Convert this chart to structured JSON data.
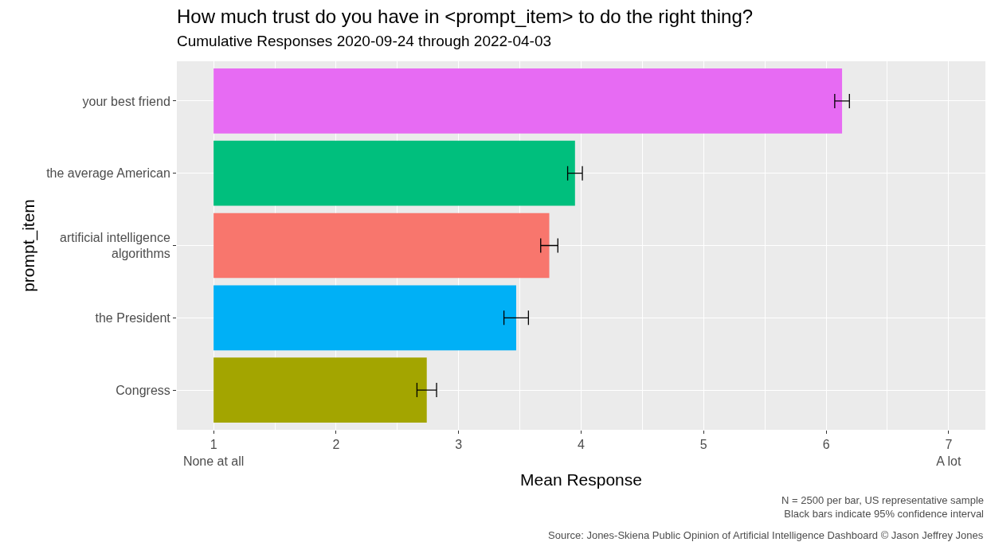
{
  "chart_data": {
    "type": "bar",
    "orientation": "horizontal",
    "title": "How much trust do you have in <prompt_item> to do the right thing?",
    "subtitle": "Cumulative Responses 2020-09-24 through 2022-04-03",
    "xlabel": "Mean Response",
    "ylabel": "prompt_item",
    "categories": [
      "your best friend",
      "the average American",
      "artificial intelligence\nalgorithms",
      "the President",
      "Congress"
    ],
    "base": [
      1,
      1,
      1,
      1,
      1
    ],
    "values": [
      5.13,
      2.95,
      2.74,
      2.47,
      1.74
    ],
    "errors": [
      0.06,
      0.06,
      0.07,
      0.1,
      0.08
    ],
    "colors": [
      "#e76bf3",
      "#00bf7d",
      "#f8766d",
      "#00b0f6",
      "#a3a500"
    ],
    "xlim": [
      0.7,
      7.3
    ],
    "xticks": [
      {
        "value": 1,
        "label": "1\nNone at all"
      },
      2,
      3,
      4,
      5,
      6,
      {
        "value": 7,
        "label": "7\nA lot"
      }
    ],
    "grid": true,
    "legend": false,
    "annotations": [
      "N = 2500 per bar, US representative sample\nBlack bars indicate 95% confidence interval",
      "Source: Jones-Skiena Public Opinion of Artificial Intelligence Dashboard © Jason Jeffrey Jones"
    ]
  }
}
